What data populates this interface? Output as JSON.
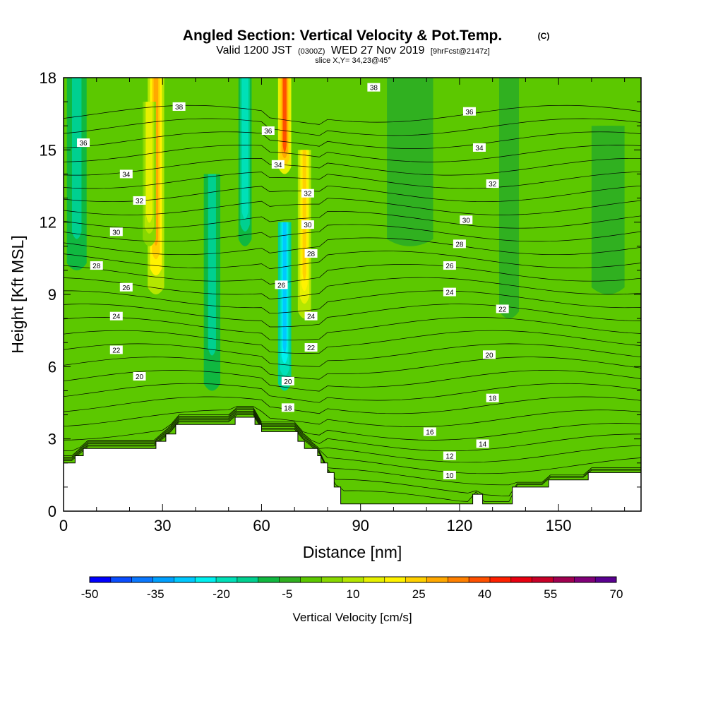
{
  "title": {
    "main": "Angled Section: Vertical Velocity & Pot.Temp.",
    "copyright": "(C)",
    "valid_prefix": "Valid 1200 JST",
    "valid_utc": "(0300Z)",
    "valid_date": "WED 27 Nov 2019",
    "forecast": "[9hrFcst@2147z]",
    "slice": "slice X,Y= 34,23@45°"
  },
  "chart_data": {
    "type": "heatmap",
    "xlabel": "Distance [nm]",
    "ylabel": "Height [Kft MSL]",
    "xlim": [
      0,
      175
    ],
    "ylim": [
      0,
      18
    ],
    "xticks": [
      0,
      30,
      60,
      90,
      120,
      150
    ],
    "yticks": [
      0,
      3,
      6,
      9,
      12,
      15,
      18
    ],
    "colorbar": {
      "label": "Vertical Velocity [cm/s]",
      "tick_labels": [
        "-50",
        "-35",
        "-20",
        "-5",
        "10",
        "25",
        "40",
        "55",
        "70"
      ],
      "levels": [
        -50,
        -45,
        -40,
        -35,
        -30,
        -25,
        -20,
        -15,
        -10,
        -5,
        0,
        5,
        10,
        15,
        20,
        25,
        30,
        35,
        40,
        45,
        50,
        55,
        60,
        65,
        70
      ],
      "colors": [
        "#0000ff",
        "#0a4dff",
        "#0a78ff",
        "#00a0ff",
        "#00c8ff",
        "#00f0f0",
        "#00e0b8",
        "#00d090",
        "#10b840",
        "#30b020",
        "#5cc800",
        "#88d800",
        "#b4e600",
        "#e6f000",
        "#fff200",
        "#ffd000",
        "#ffa800",
        "#ff8000",
        "#ff5000",
        "#ff2000",
        "#e80010",
        "#c80028",
        "#a00050",
        "#800078",
        "#5a0090"
      ]
    },
    "vertical_velocity_features": [
      {
        "x_center": 4,
        "x_width": 6,
        "y_range": [
          10,
          18
        ],
        "value": -15
      },
      {
        "x_center": 28,
        "x_width": 5,
        "y_range": [
          9,
          18
        ],
        "value": 35
      },
      {
        "x_center": 26,
        "x_width": 4,
        "y_range": [
          11,
          17
        ],
        "value": 20
      },
      {
        "x_center": 45,
        "x_width": 5,
        "y_range": [
          5,
          14
        ],
        "value": -15
      },
      {
        "x_center": 55,
        "x_width": 4,
        "y_range": [
          11,
          18
        ],
        "value": -20
      },
      {
        "x_center": 67,
        "x_width": 4,
        "y_range": [
          5,
          12
        ],
        "value": -30
      },
      {
        "x_center": 67,
        "x_width": 4,
        "y_range": [
          14,
          18
        ],
        "value": 45
      },
      {
        "x_center": 73,
        "x_width": 4,
        "y_range": [
          8,
          15
        ],
        "value": 30
      },
      {
        "x_center": 105,
        "x_width": 14,
        "y_range": [
          11,
          18
        ],
        "value": -5
      },
      {
        "x_center": 135,
        "x_width": 6,
        "y_range": [
          8,
          18
        ],
        "value": -5
      },
      {
        "x_center": 165,
        "x_width": 10,
        "y_range": [
          9,
          16
        ],
        "value": -5
      }
    ],
    "potential_temperature_contours": {
      "levels": [
        10,
        12,
        14,
        16,
        18,
        20,
        22,
        24,
        26,
        28,
        30,
        32,
        34,
        36,
        38
      ],
      "labels": [
        {
          "value": "38",
          "x": 35,
          "y": 16.8
        },
        {
          "value": "38",
          "x": 94,
          "y": 17.6
        },
        {
          "value": "36",
          "x": 6,
          "y": 15.3
        },
        {
          "value": "36",
          "x": 62,
          "y": 15.8
        },
        {
          "value": "36",
          "x": 123,
          "y": 16.6
        },
        {
          "value": "34",
          "x": 19,
          "y": 14.0
        },
        {
          "value": "34",
          "x": 65,
          "y": 14.4
        },
        {
          "value": "34",
          "x": 126,
          "y": 15.1
        },
        {
          "value": "32",
          "x": 23,
          "y": 12.9
        },
        {
          "value": "32",
          "x": 74,
          "y": 13.2
        },
        {
          "value": "32",
          "x": 130,
          "y": 13.6
        },
        {
          "value": "30",
          "x": 16,
          "y": 11.6
        },
        {
          "value": "30",
          "x": 74,
          "y": 11.9
        },
        {
          "value": "30",
          "x": 122,
          "y": 12.1
        },
        {
          "value": "28",
          "x": 10,
          "y": 10.2
        },
        {
          "value": "28",
          "x": 75,
          "y": 10.7
        },
        {
          "value": "28",
          "x": 120,
          "y": 11.1
        },
        {
          "value": "26",
          "x": 19,
          "y": 9.3
        },
        {
          "value": "26",
          "x": 66,
          "y": 9.4
        },
        {
          "value": "26",
          "x": 117,
          "y": 10.2
        },
        {
          "value": "24",
          "x": 16,
          "y": 8.1
        },
        {
          "value": "24",
          "x": 75,
          "y": 8.1
        },
        {
          "value": "24",
          "x": 117,
          "y": 9.1
        },
        {
          "value": "22",
          "x": 16,
          "y": 6.7
        },
        {
          "value": "22",
          "x": 75,
          "y": 6.8
        },
        {
          "value": "22",
          "x": 133,
          "y": 8.4
        },
        {
          "value": "20",
          "x": 23,
          "y": 5.6
        },
        {
          "value": "20",
          "x": 68,
          "y": 5.4
        },
        {
          "value": "20",
          "x": 129,
          "y": 6.5
        },
        {
          "value": "18",
          "x": 68,
          "y": 4.3
        },
        {
          "value": "18",
          "x": 130,
          "y": 4.7
        },
        {
          "value": "16",
          "x": 111,
          "y": 3.3
        },
        {
          "value": "14",
          "x": 127,
          "y": 2.8
        },
        {
          "value": "12",
          "x": 117,
          "y": 2.3
        },
        {
          "value": "10",
          "x": 117,
          "y": 1.5
        }
      ]
    },
    "terrain_top_kft": [
      [
        0,
        2.0
      ],
      [
        3.5,
        2.0
      ],
      [
        3.5,
        2.3
      ],
      [
        6,
        2.3
      ],
      [
        6,
        2.6
      ],
      [
        28,
        2.6
      ],
      [
        28,
        2.9
      ],
      [
        31,
        2.9
      ],
      [
        31,
        3.2
      ],
      [
        34,
        3.2
      ],
      [
        34,
        3.6
      ],
      [
        52,
        3.6
      ],
      [
        52,
        3.9
      ],
      [
        58,
        3.9
      ],
      [
        58,
        3.6
      ],
      [
        60,
        3.6
      ],
      [
        60,
        3.3
      ],
      [
        71,
        3.3
      ],
      [
        71,
        2.9
      ],
      [
        73,
        2.9
      ],
      [
        73,
        2.6
      ],
      [
        77,
        2.6
      ],
      [
        77,
        2.3
      ],
      [
        78,
        2.3
      ],
      [
        78,
        2.0
      ],
      [
        80,
        2.0
      ],
      [
        80,
        1.6
      ],
      [
        82,
        1.6
      ],
      [
        82,
        1.0
      ],
      [
        84,
        1.0
      ],
      [
        84,
        0.3
      ],
      [
        124,
        0.3
      ],
      [
        124,
        0.7
      ],
      [
        127,
        0.7
      ],
      [
        127,
        0.3
      ],
      [
        136,
        0.3
      ],
      [
        136,
        1.0
      ],
      [
        147,
        1.0
      ],
      [
        147,
        1.3
      ],
      [
        159,
        1.3
      ],
      [
        159,
        1.6
      ],
      [
        175,
        1.6
      ]
    ]
  }
}
